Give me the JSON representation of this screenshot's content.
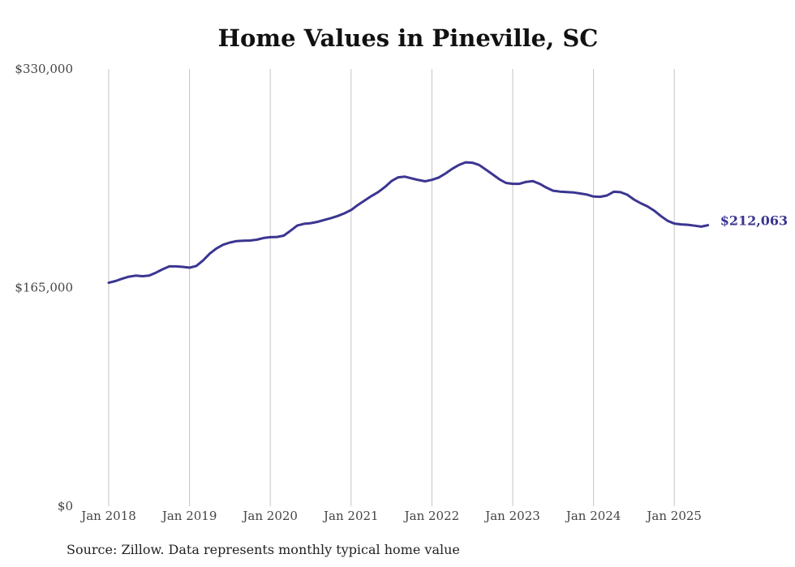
{
  "chart_data": {
    "type": "line",
    "title": "Home Values in Pineville, SC",
    "xlabel": "",
    "ylabel": "",
    "ylim": [
      0,
      330000
    ],
    "y_ticks": [
      "$330,000",
      "$165,000",
      "$0"
    ],
    "y_tick_values": [
      330000,
      165000,
      0
    ],
    "x_ticks": [
      "Jan 2018",
      "Jan 2019",
      "Jan 2020",
      "Jan 2021",
      "Jan 2022",
      "Jan 2023",
      "Jan 2024",
      "Jan 2025"
    ],
    "x_tick_values": [
      "2018-01",
      "2019-01",
      "2020-01",
      "2021-01",
      "2022-01",
      "2023-01",
      "2024-01",
      "2025-01"
    ],
    "grid": "vertical",
    "series": [
      {
        "color": "#3b3591",
        "x": [
          "2018-01",
          "2018-02",
          "2018-03",
          "2018-04",
          "2018-05",
          "2018-06",
          "2018-07",
          "2018-08",
          "2018-09",
          "2018-10",
          "2018-11",
          "2018-12",
          "2019-01",
          "2019-02",
          "2019-03",
          "2019-04",
          "2019-05",
          "2019-06",
          "2019-07",
          "2019-08",
          "2019-09",
          "2019-10",
          "2019-11",
          "2019-12",
          "2020-01",
          "2020-02",
          "2020-03",
          "2020-04",
          "2020-05",
          "2020-06",
          "2020-07",
          "2020-08",
          "2020-09",
          "2020-10",
          "2020-11",
          "2020-12",
          "2021-01",
          "2021-02",
          "2021-03",
          "2021-04",
          "2021-05",
          "2021-06",
          "2021-07",
          "2021-08",
          "2021-09",
          "2021-10",
          "2021-11",
          "2021-12",
          "2022-01",
          "2022-02",
          "2022-03",
          "2022-04",
          "2022-05",
          "2022-06",
          "2022-07",
          "2022-08",
          "2022-09",
          "2022-10",
          "2022-11",
          "2022-12",
          "2023-01",
          "2023-02",
          "2023-03",
          "2023-04",
          "2023-05",
          "2023-06",
          "2023-07",
          "2023-08",
          "2023-09",
          "2023-10",
          "2023-11",
          "2023-12",
          "2024-01",
          "2024-02",
          "2024-03",
          "2024-04",
          "2024-05",
          "2024-06",
          "2024-07",
          "2024-08",
          "2024-09",
          "2024-10",
          "2024-11",
          "2024-12",
          "2025-01",
          "2025-02",
          "2025-03",
          "2025-04",
          "2025-05",
          "2025-06"
        ],
        "values": [
          168600,
          169900,
          171700,
          173200,
          174000,
          173600,
          174000,
          176200,
          178800,
          181000,
          181000,
          180600,
          180000,
          181300,
          185400,
          190600,
          194500,
          197300,
          199000,
          200100,
          200300,
          200500,
          201100,
          202400,
          203000,
          203200,
          204200,
          207900,
          211800,
          213100,
          213600,
          214600,
          216000,
          217400,
          219000,
          221000,
          223500,
          227300,
          230700,
          234000,
          237000,
          240800,
          245400,
          248200,
          248700,
          247400,
          246200,
          245200,
          246300,
          248000,
          251000,
          254600,
          257500,
          259500,
          259200,
          257600,
          254100,
          250500,
          246800,
          244000,
          243300,
          243300,
          244800,
          245300,
          243300,
          240400,
          238100,
          237400,
          237100,
          236800,
          236000,
          235200,
          233700,
          233500,
          234500,
          237300,
          237000,
          235100,
          231500,
          228700,
          226300,
          223100,
          219000,
          215400,
          213300,
          212700,
          212400,
          211700,
          211000,
          212063
        ]
      }
    ],
    "end_label": "$212,063",
    "source_note": "Source: Zillow. Data represents monthly typical home value"
  }
}
